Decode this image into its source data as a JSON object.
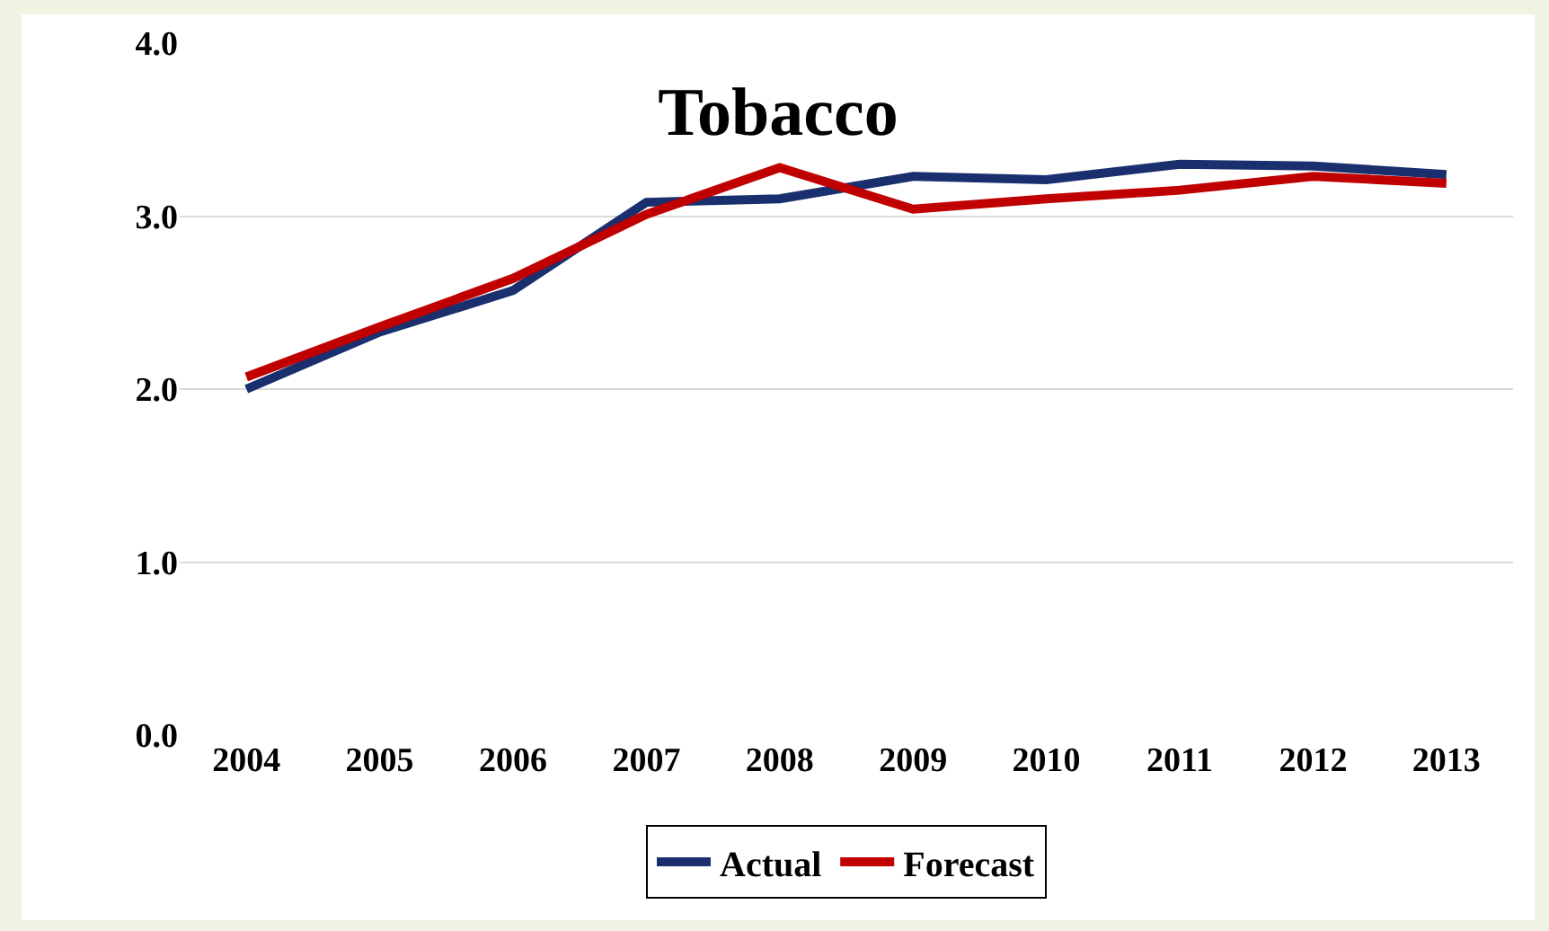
{
  "chart_data": {
    "type": "line",
    "title": "Tobacco",
    "categories": [
      "2004",
      "2005",
      "2006",
      "2007",
      "2008",
      "2009",
      "2010",
      "2011",
      "2012",
      "2013"
    ],
    "series": [
      {
        "name": "Actual",
        "color": "#1a2f6e",
        "values": [
          2.0,
          2.33,
          2.57,
          3.08,
          3.1,
          3.23,
          3.21,
          3.3,
          3.29,
          3.24
        ]
      },
      {
        "name": "Forecast",
        "color": "#c00000",
        "values": [
          2.07,
          2.36,
          2.64,
          3.01,
          3.28,
          3.04,
          3.1,
          3.15,
          3.23,
          3.19
        ]
      }
    ],
    "ylim": [
      0,
      4
    ],
    "yticks": [
      {
        "value": 0,
        "label": "0.0"
      },
      {
        "value": 1,
        "label": "1.0"
      },
      {
        "value": 2,
        "label": "2.0"
      },
      {
        "value": 3,
        "label": "3.0"
      },
      {
        "value": 4,
        "label": "4.0"
      }
    ],
    "grid": "y",
    "legend": "bottom",
    "marker": "none",
    "line_style": "solid"
  }
}
